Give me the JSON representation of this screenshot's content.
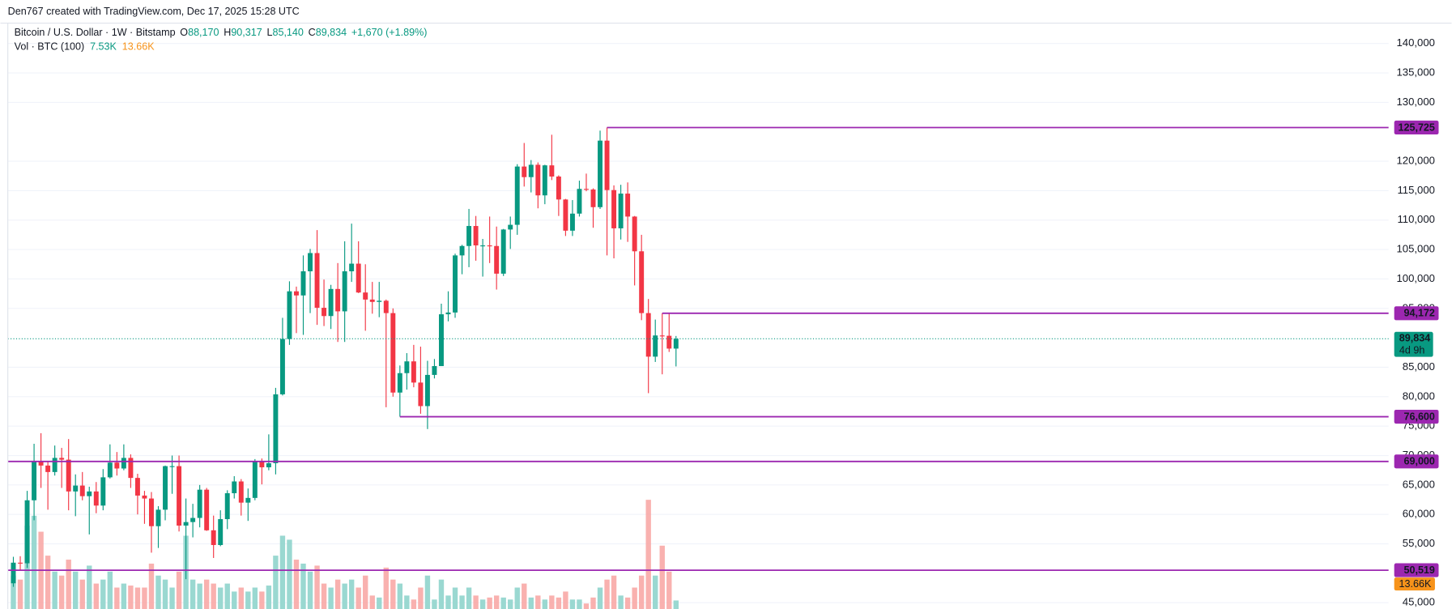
{
  "header": "Den767 created with TradingView.com, Dec 17, 2025 15:28 UTC",
  "legend": {
    "symbol": "Bitcoin / U.S. Dollar · 1W · Bitstamp",
    "open_label": "O",
    "open": "88,170",
    "high_label": "H",
    "high": "90,317",
    "low_label": "L",
    "low": "85,140",
    "close_label": "C",
    "close": "89,834",
    "change": "+1,670 (+1.89%)",
    "volume_title": "Vol · BTC (100)",
    "volume": "7.53K",
    "volume_ma": "13.66K"
  },
  "chart_data": {
    "type": "candlestick",
    "up_color": "#089981",
    "down_color": "#f23645",
    "volume_up_color": "#8fd4cc",
    "volume_down_color": "#f8a9a6",
    "volume_ma_color": "#f7931a",
    "level_color": "#9c27b0",
    "open": [
      48300,
      51800,
      51700,
      62400,
      68900,
      68300,
      67200,
      69600,
      69300,
      63900,
      64900,
      63100,
      63900,
      61500,
      66300,
      68800,
      67800,
      69600,
      66200,
      63200,
      62700,
      58000,
      60800,
      68200,
      68200,
      58100,
      58700,
      59400,
      64200,
      57300,
      54800,
      59200,
      63600,
      65600,
      62000,
      62800,
      69000,
      68000,
      68700,
      80400,
      89800,
      97900,
      97200,
      101300,
      104400,
      95100,
      93700,
      98300,
      94500,
      101300,
      102600,
      97700,
      96500,
      96100,
      96300,
      94200,
      80700,
      84000,
      86000,
      82400,
      78400,
      83700,
      85200,
      94000,
      94300,
      104000,
      105600,
      109000,
      105700,
      105700,
      105600,
      100900,
      108400,
      109200,
      119100,
      117300,
      119400,
      114200,
      119300,
      117400,
      113500,
      108200,
      111100,
      115300,
      115200,
      112200,
      123500,
      115100,
      108600,
      114500,
      110600,
      104700,
      94200,
      86800,
      90400,
      90350,
      88170
    ],
    "high": [
      52800,
      52900,
      64000,
      72000,
      73800,
      68900,
      71700,
      71300,
      72800,
      66800,
      67200,
      64700,
      65500,
      67700,
      71900,
      70600,
      71900,
      70200,
      66900,
      64000,
      63800,
      61400,
      68300,
      70000,
      70000,
      62700,
      61800,
      65000,
      64500,
      59800,
      60700,
      64100,
      66500,
      66000,
      64400,
      69400,
      69500,
      73600,
      81500,
      93400,
      99600,
      98700,
      104000,
      105100,
      108300,
      99900,
      99000,
      102700,
      106400,
      109400,
      106400,
      102500,
      99500,
      99500,
      96500,
      95000,
      85300,
      87400,
      88800,
      88500,
      86100,
      86400,
      95800,
      97900,
      104300,
      105800,
      111900,
      110700,
      106800,
      110600,
      108900,
      108500,
      110600,
      119500,
      123100,
      120200,
      119800,
      119400,
      124500,
      117600,
      113600,
      113400,
      116700,
      117900,
      115400,
      125200,
      125725,
      115900,
      116000,
      116400,
      110700,
      107500,
      96600,
      93100,
      94172,
      94100,
      90317
    ],
    "low": [
      47700,
      50600,
      50900,
      59000,
      64500,
      60800,
      66600,
      64500,
      60700,
      59700,
      62400,
      56600,
      60200,
      60700,
      66100,
      66600,
      67500,
      64500,
      60000,
      58400,
      53500,
      54300,
      59000,
      63500,
      57100,
      49000,
      56100,
      57800,
      57200,
      52600,
      54600,
      57500,
      62700,
      59800,
      58900,
      62400,
      65100,
      67500,
      66800,
      80200,
      88800,
      90800,
      90500,
      94200,
      92200,
      92000,
      91500,
      89300,
      89300,
      99500,
      97600,
      91200,
      94100,
      93500,
      78200,
      80000,
      76600,
      81200,
      81600,
      77100,
      74500,
      83100,
      85200,
      92800,
      93400,
      100800,
      102000,
      103100,
      100400,
      102700,
      98200,
      100500,
      105100,
      107500,
      115700,
      114700,
      112000,
      112700,
      116800,
      110700,
      107300,
      107300,
      110600,
      114900,
      108700,
      111900,
      104000,
      103500,
      106700,
      106300,
      98900,
      93000,
      80600,
      85900,
      83800,
      87600,
      85140
    ],
    "close": [
      51800,
      51700,
      62400,
      68900,
      68300,
      67200,
      69600,
      69300,
      63900,
      64900,
      63100,
      63900,
      61500,
      66300,
      68800,
      67800,
      69600,
      66200,
      63200,
      62700,
      58000,
      60800,
      68200,
      68200,
      58100,
      58700,
      59400,
      64200,
      57300,
      54800,
      59200,
      63600,
      65600,
      62000,
      62800,
      69000,
      68000,
      68700,
      80400,
      89800,
      97900,
      97200,
      101300,
      104400,
      95100,
      93700,
      98300,
      94500,
      101300,
      102600,
      97700,
      96500,
      96100,
      96300,
      94200,
      80700,
      84000,
      86000,
      82400,
      78400,
      83700,
      85200,
      94000,
      94300,
      104000,
      105600,
      109000,
      105700,
      105700,
      105600,
      100900,
      108400,
      109200,
      119100,
      117300,
      119400,
      114200,
      119300,
      117400,
      113500,
      108200,
      111100,
      115300,
      115200,
      112200,
      123500,
      115100,
      108600,
      114500,
      110600,
      104700,
      94200,
      86800,
      90400,
      90350,
      88170,
      89834
    ],
    "volume": [
      20000,
      18000,
      45000,
      50000,
      42000,
      30000,
      22000,
      20000,
      28000,
      22000,
      18000,
      25000,
      16000,
      18000,
      22000,
      14000,
      16000,
      15000,
      14000,
      14000,
      26000,
      20000,
      18000,
      14000,
      22000,
      40000,
      18000,
      16000,
      18000,
      16000,
      14000,
      16000,
      12000,
      14000,
      12000,
      14000,
      12000,
      15000,
      30000,
      40000,
      38000,
      28000,
      26000,
      22000,
      25000,
      16000,
      14000,
      18000,
      16000,
      18000,
      14000,
      20000,
      10000,
      9000,
      24000,
      18000,
      16000,
      10000,
      8000,
      14000,
      20000,
      8000,
      18000,
      10000,
      14000,
      10000,
      14000,
      10000,
      8000,
      9000,
      10000,
      9000,
      8000,
      14000,
      16000,
      9000,
      10000,
      8000,
      10000,
      9000,
      12000,
      8000,
      8000,
      6000,
      9000,
      14000,
      18000,
      20000,
      10000,
      9000,
      14000,
      20000,
      58000,
      20000,
      35000,
      22000,
      7530
    ],
    "ylim": [
      43930,
      143460
    ],
    "yticks": [
      {
        "value": 45000,
        "label": "45,000"
      },
      {
        "value": 55000,
        "label": "55,000"
      },
      {
        "value": 60000,
        "label": "60,000"
      },
      {
        "value": 65000,
        "label": "65,000"
      },
      {
        "value": 70000,
        "label": "70,000"
      },
      {
        "value": 75000,
        "label": "75,000"
      },
      {
        "value": 80000,
        "label": "80,000"
      },
      {
        "value": 85000,
        "label": "85,000"
      },
      {
        "value": 95000,
        "label": "95,000"
      },
      {
        "value": 100000,
        "label": "100,000"
      },
      {
        "value": 105000,
        "label": "105,000"
      },
      {
        "value": 110000,
        "label": "110,000"
      },
      {
        "value": 115000,
        "label": "115,000"
      },
      {
        "value": 120000,
        "label": "120,000"
      },
      {
        "value": 130000,
        "label": "130,000"
      },
      {
        "value": 135000,
        "label": "135,000"
      },
      {
        "value": 140000,
        "label": "140,000"
      }
    ],
    "grid": true,
    "levels": [
      {
        "value": 125725,
        "label": "125,725"
      },
      {
        "value": 94172,
        "label": "94,172"
      },
      {
        "value": 76600,
        "label": "76,600"
      },
      {
        "value": 69000,
        "label": "69,000"
      },
      {
        "value": 50519,
        "label": "50,519"
      }
    ],
    "current_price": {
      "value": 89834,
      "label": "89,834",
      "countdown": "4d 9h"
    }
  }
}
